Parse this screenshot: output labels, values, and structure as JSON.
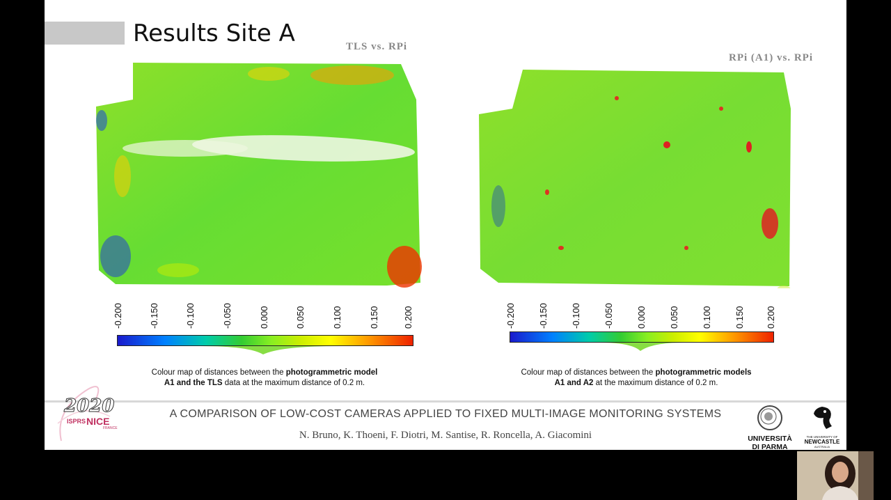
{
  "slide": {
    "title": "Results Site A",
    "left_panel": {
      "comparison_label": "TLS vs. RPi",
      "scale_ticks": [
        "-0.200",
        "-0.150",
        "-0.100",
        "-0.050",
        "0.000",
        "0.050",
        "0.100",
        "0.150",
        "0.200"
      ],
      "caption_part1": "Colour map of distances between the ",
      "caption_bold1": "photogrammetric model",
      "caption_bold2": "A1 and the TLS",
      "caption_part2": " data at the maximum distance of 0.2 m."
    },
    "right_panel": {
      "comparison_label": "RPi (A1) vs. RPi",
      "scale_ticks": [
        "-0.200",
        "-0.150",
        "-0.100",
        "-0.050",
        "0.000",
        "0.050",
        "0.100",
        "0.150",
        "0.200"
      ],
      "caption_part1": "Colour map of distances between the ",
      "caption_bold1": "photogrammetric models",
      "caption_bold2": "A1 and A2",
      "caption_part2": " at the maximum distance of 0.2 m."
    },
    "footer": {
      "title": "A COMPARISON OF LOW-COST CAMERAS APPLIED TO FIXED MULTI-IMAGE MONITORING SYSTEMS",
      "authors": "N. Bruno, K. Thoeni, F. Diotri, M. Santise, R. Roncella, A. Giacomini",
      "conference_logo": {
        "year": "2020",
        "org": "ISPRS",
        "city": "NICE",
        "country": "FRANCE"
      },
      "university_logo": {
        "line1": "UNIVERSITÀ",
        "line2": "DI PARMA"
      },
      "newcastle_logo": {
        "line0": "THE UNIVERSITY OF",
        "line1": "NEWCASTLE",
        "line2": "AUSTRALIA"
      }
    }
  },
  "colors": {
    "colormap": [
      "#1a1acc",
      "#0080ff",
      "#33cc33",
      "#88ee22",
      "#ffff00",
      "#ff9900",
      "#ee2200"
    ],
    "title_bar": "#c8c8c8",
    "accent_isprs": "#c03060"
  }
}
